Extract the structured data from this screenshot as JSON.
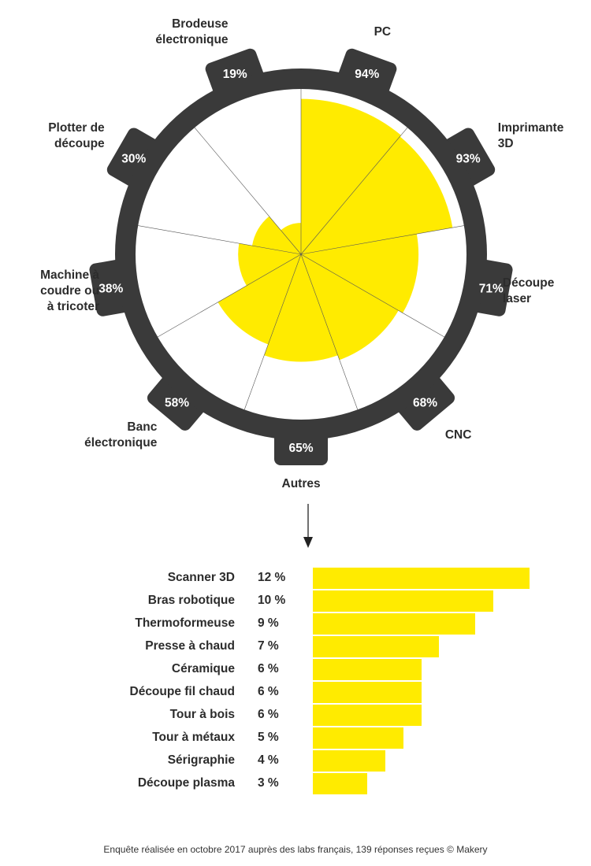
{
  "chart_data": [
    {
      "type": "radial-bar",
      "unit": "%",
      "categories": [
        "PC",
        "Imprimante 3D",
        "Découpe laser",
        "CNC",
        "Autres",
        "Banc électronique",
        "Machine à coudre ou à tricoter",
        "Plotter de découpe",
        "Brodeuse électronique"
      ],
      "labels": [
        [
          "PC"
        ],
        [
          "Imprimante",
          "3D"
        ],
        [
          "Découpe",
          "laser"
        ],
        [
          "CNC"
        ],
        [
          "Autres"
        ],
        [
          "Banc",
          "électronique"
        ],
        [
          "Machine à",
          "coudre ou",
          "à tricoter"
        ],
        [
          "Plotter de",
          "découpe"
        ],
        [
          "Brodeuse",
          "électronique"
        ]
      ],
      "values": [
        94,
        93,
        71,
        68,
        65,
        58,
        38,
        30,
        19
      ],
      "value_labels": [
        "94%",
        "93%",
        "71%",
        "68%",
        "65%",
        "58%",
        "38%",
        "30%",
        "19%"
      ],
      "colors": {
        "fill": "#ffeb00",
        "ring": "#3a3a3a",
        "spokes": "#555555"
      }
    },
    {
      "type": "bar",
      "orientation": "horizontal",
      "categories": [
        "Scanner 3D",
        "Bras robotique",
        "Thermoformeuse",
        "Presse à chaud",
        "Céramique",
        "Découpe fil chaud",
        "Tour à bois",
        "Tour à métaux",
        "Sérigraphie",
        "Découpe plasma"
      ],
      "values": [
        12,
        10,
        9,
        7,
        6,
        6,
        6,
        5,
        4,
        3
      ],
      "value_labels": [
        "12 %",
        "10 %",
        "9 %",
        "7 %",
        "6 %",
        "6 %",
        "6 %",
        "5 %",
        "4 %",
        "3 %"
      ],
      "xlim": [
        0,
        12
      ],
      "color": "#ffeb00"
    }
  ],
  "footnote": "Enquête réalisée en octobre 2017 auprès des labs français, 139 réponses reçues © Makery"
}
